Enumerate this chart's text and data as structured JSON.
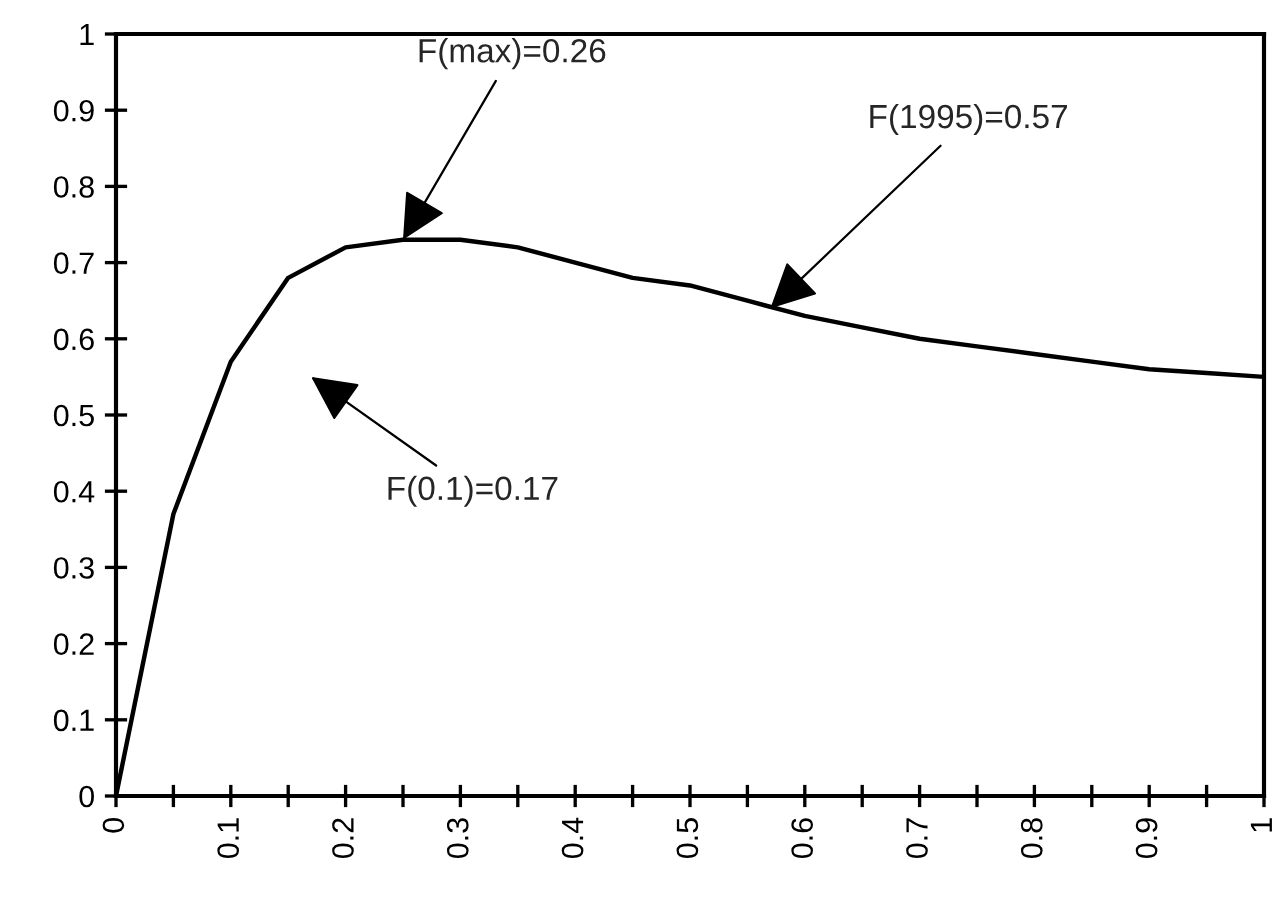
{
  "chart_data": {
    "type": "line",
    "x": [
      0,
      0.05,
      0.1,
      0.15,
      0.2,
      0.25,
      0.3,
      0.35,
      0.4,
      0.45,
      0.5,
      0.55,
      0.6,
      0.65,
      0.7,
      0.75,
      0.8,
      0.85,
      0.9,
      0.95,
      1
    ],
    "series": [
      {
        "color": "#000000",
        "values": [
          0,
          0.37,
          0.57,
          0.68,
          0.72,
          0.73,
          0.73,
          0.72,
          0.7,
          0.68,
          0.67,
          0.65,
          0.63,
          0.615,
          0.6,
          0.59,
          0.58,
          0.57,
          0.56,
          0.555,
          0.55
        ]
      }
    ],
    "xlim": [
      0,
      1
    ],
    "ylim": [
      0,
      1
    ],
    "xticks": [
      0,
      {
        "value": 0.05,
        "label": null
      },
      0.1,
      {
        "value": 0.15,
        "label": null
      },
      0.2,
      {
        "value": 0.25,
        "label": null
      },
      0.3,
      {
        "value": 0.35,
        "label": null
      },
      0.4,
      {
        "value": 0.45,
        "label": null
      },
      0.5,
      {
        "value": 0.55,
        "label": null
      },
      0.6,
      {
        "value": 0.65,
        "label": null
      },
      0.7,
      {
        "value": 0.75,
        "label": null
      },
      0.8,
      {
        "value": 0.85,
        "label": null
      },
      0.9,
      {
        "value": 0.95,
        "label": null
      },
      1
    ],
    "yticks": [
      0,
      0.1,
      0.2,
      0.3,
      0.4,
      0.5,
      0.6,
      0.7,
      0.8,
      0.9,
      1
    ],
    "annotations": [
      {
        "text": "F(max)=0.26",
        "x": 0.25,
        "y": 0.73
      },
      {
        "text": "F(1995)=0.57",
        "x": 0.57,
        "y": 0.64
      },
      "F(0.1)=0.17"
    ],
    "grid": false,
    "marker": "none",
    "line_style": "solid"
  }
}
